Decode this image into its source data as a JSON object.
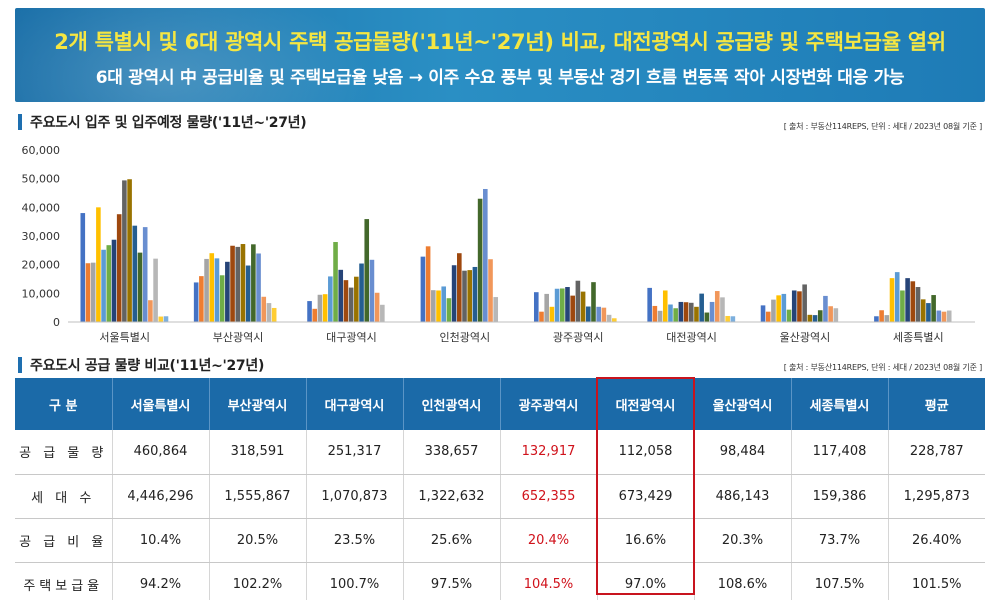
{
  "banner": {
    "title": "2개 특별시 및 6대 광역시 주택 공급물량('11년~'27년) 비교, 대전광역시 공급량 및 주택보급율 열위",
    "subtitle": "6대 광역시 中 공급비율 및 주택보급율 낮음 → 이주 수요 풍부 및 부동산 경기 흐름 변동폭 작아 시장변화 대응 가능"
  },
  "section1": {
    "title": "주요도시 입주 및 입주예정 물량('11년~'27년)",
    "source": "[ 출처 : 부동산114REPS, 단위 : 세대 / 2023년 08월 기준 ]"
  },
  "section2": {
    "title": "주요도시 공급 물량 비교('11년~'27년)",
    "source": "[ 출처 : 부동산114REPS, 단위 : 세대 / 2023년 08월 기준 ]"
  },
  "chart_data": {
    "type": "bar",
    "title": "",
    "xlabel": "",
    "ylabel": "",
    "ylim": [
      0,
      60000
    ],
    "yticks": [
      "0",
      "10,000",
      "20,000",
      "30,000",
      "40,000",
      "50,000",
      "60,000"
    ],
    "categories": [
      "서울특별시",
      "부산광역시",
      "대구광역시",
      "인천광역시",
      "광주광역시",
      "대전광역시",
      "울산광역시",
      "세종특별시"
    ],
    "bars_per_group": 17,
    "series_colors": [
      "#4472c4",
      "#ed7d31",
      "#a5a5a5",
      "#ffc000",
      "#5b9bd5",
      "#70ad47",
      "#264478",
      "#9e480e",
      "#636363",
      "#997300",
      "#255e91",
      "#43682b",
      "#698ed0",
      "#f1975a",
      "#b7b7b7",
      "#ffcd33",
      "#7cafdd"
    ],
    "values": [
      [
        38000,
        20500,
        20700,
        40000,
        25200,
        26800,
        28700,
        37600,
        49400,
        49800,
        33600,
        24200,
        33100,
        7600,
        22100,
        1900,
        2000
      ],
      [
        13800,
        16000,
        22000,
        24000,
        22200,
        16300,
        21000,
        26600,
        26200,
        27200,
        19700,
        27100,
        23900,
        8800,
        6600,
        4900,
        0
      ],
      [
        7300,
        4600,
        9500,
        9700,
        15900,
        27900,
        18200,
        14600,
        12000,
        15800,
        20400,
        35900,
        21700,
        10200,
        6000,
        0,
        0
      ],
      [
        22800,
        26400,
        11100,
        11000,
        12400,
        8300,
        19800,
        24000,
        17900,
        18100,
        19200,
        43000,
        46400,
        21900,
        8700,
        0,
        0
      ],
      [
        10400,
        3600,
        9800,
        5300,
        11600,
        11700,
        12200,
        9200,
        14400,
        10600,
        5400,
        13900,
        5300,
        5000,
        2500,
        1300,
        0
      ],
      [
        11900,
        5600,
        3900,
        11000,
        6100,
        4800,
        7000,
        6900,
        6700,
        5300,
        9900,
        3300,
        7000,
        10800,
        8600,
        2100,
        2000
      ],
      [
        5800,
        3600,
        7800,
        9300,
        9800,
        4300,
        11000,
        10700,
        13100,
        2500,
        2400,
        4100,
        9100,
        5500,
        4800,
        0,
        0
      ],
      [
        2000,
        4100,
        2400,
        15300,
        17400,
        11000,
        15300,
        14200,
        12200,
        7900,
        6600,
        9400,
        4000,
        3600,
        4000,
        0,
        0
      ]
    ]
  },
  "table": {
    "headers": [
      "구      분",
      "서울특별시",
      "부산광역시",
      "대구광역시",
      "인천광역시",
      "광주광역시",
      "대전광역시",
      "울산광역시",
      "세종특별시",
      "평균"
    ],
    "rows": [
      {
        "label": "공 급 물 량",
        "cells": [
          "460,864",
          "318,591",
          "251,317",
          "338,657",
          "132,917",
          "112,058",
          "98,484",
          "117,408",
          "228,787"
        ]
      },
      {
        "label": "세  대  수",
        "cells": [
          "4,446,296",
          "1,555,867",
          "1,070,873",
          "1,322,632",
          "652,355",
          "673,429",
          "486,143",
          "159,386",
          "1,295,873"
        ]
      },
      {
        "label": "공 급 비 율",
        "cells": [
          "10.4%",
          "20.5%",
          "23.5%",
          "25.6%",
          "20.4%",
          "16.6%",
          "20.3%",
          "73.7%",
          "26.40%"
        ]
      },
      {
        "label": "주택보급율",
        "cells": [
          "94.2%",
          "102.2%",
          "100.7%",
          "97.5%",
          "104.5%",
          "97.0%",
          "108.6%",
          "107.5%",
          "101.5%"
        ]
      }
    ],
    "highlight_column": 5,
    "highlight_color": "#d0121b"
  }
}
